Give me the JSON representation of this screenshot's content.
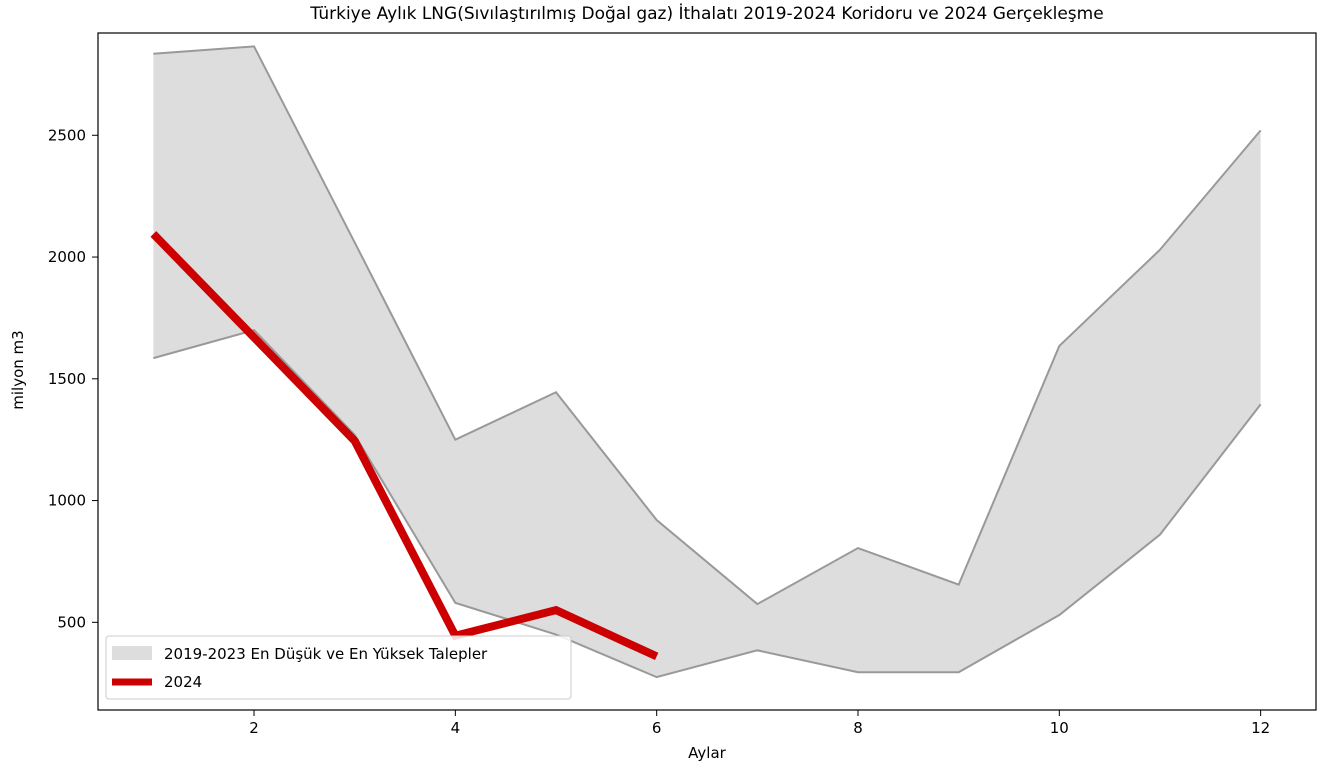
{
  "chart_data": {
    "type": "area",
    "title": "Türkiye Aylık LNG(Sıvılaştırılmış Doğal gaz) İthalatı 2019-2024 Koridoru ve 2024 Gerçekleşme",
    "xlabel": "Aylar",
    "ylabel": "milyon m3",
    "xlim": [
      0.45,
      12.55
    ],
    "ylim": [
      140,
      2920
    ],
    "xticks": [
      2,
      4,
      6,
      8,
      10,
      12
    ],
    "yticks": [
      500,
      1000,
      1500,
      2000,
      2500
    ],
    "grid": false,
    "legend_position": "lower-left",
    "band": {
      "name": "2019-2023 En Düşük ve En Yüksek Talepler",
      "color": "#dddddd",
      "edge_color": "#999999",
      "x": [
        1,
        2,
        3,
        4,
        5,
        6,
        7,
        8,
        9,
        10,
        11,
        12
      ],
      "low": [
        1585,
        1700,
        1270,
        580,
        450,
        275,
        385,
        295,
        295,
        530,
        860,
        1395
      ],
      "high": [
        2835,
        2865,
        2060,
        1250,
        1445,
        920,
        575,
        805,
        655,
        1635,
        2030,
        2520
      ]
    },
    "series": [
      {
        "name": "2024",
        "color": "#cc0000",
        "x": [
          1,
          2,
          3,
          4,
          5,
          6
        ],
        "values": [
          2095,
          1670,
          1245,
          445,
          550,
          360
        ]
      }
    ]
  }
}
